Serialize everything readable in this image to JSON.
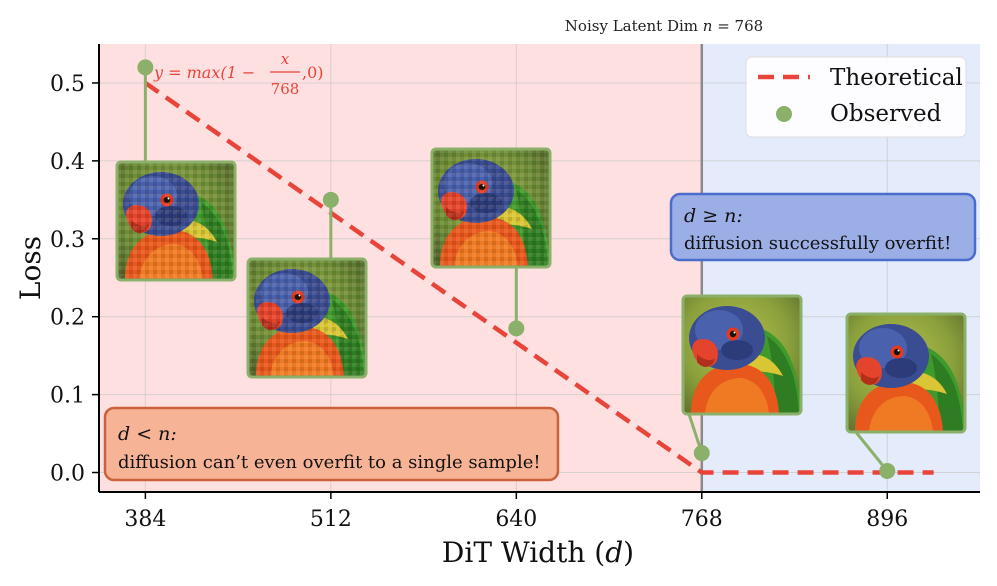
{
  "chart_data": {
    "type": "line",
    "title": "Noisy Latent Dim n = 768",
    "title_prefix": "Noisy Latent Dim ",
    "title_var": "n",
    "title_suffix": " = 768",
    "xlabel": "DiT Width (d)",
    "xlabel_prefix": "DiT Width (",
    "xlabel_var": "d",
    "xlabel_suffix": ")",
    "ylabel": "Loss",
    "xlim": [
      352,
      960
    ],
    "ylim": [
      -0.025,
      0.55
    ],
    "xticks": [
      "384",
      "512",
      "640",
      "768",
      "896"
    ],
    "yticks": [
      "0.0",
      "0.1",
      "0.2",
      "0.3",
      "0.4",
      "0.5"
    ],
    "grid": true,
    "legend_position": "top-right",
    "legend": [
      {
        "label": "Theoretical",
        "style": "dashed-line",
        "color": "#e8443a"
      },
      {
        "label": "Observed",
        "style": "marker",
        "color": "#8ab06a"
      }
    ],
    "regions": [
      {
        "name": "d < n",
        "x_from": 352,
        "x_to": 768,
        "color": "#ffe0e0"
      },
      {
        "name": "d >= n",
        "x_from": 768,
        "x_to": 960,
        "color": "#e4ecfb"
      }
    ],
    "threshold_x": 768,
    "series": [
      {
        "name": "Theoretical",
        "x": [
          384,
          768,
          928
        ],
        "values": [
          0.5,
          0.0,
          0.0
        ],
        "color": "#e8443a"
      },
      {
        "name": "Observed",
        "x": [
          384,
          512,
          640,
          768,
          896
        ],
        "values": [
          0.52,
          0.35,
          0.185,
          0.025,
          0.002
        ],
        "color": "#8ab06a"
      }
    ],
    "formula": {
      "prefix": "y = max(1 − ",
      "numerator": "x",
      "denominator": "768",
      "suffix": ",0)",
      "color": "#e8443a"
    },
    "annotations": [
      {
        "math": "d < n:",
        "text": "diffusion can’t even overfit to a single sample!",
        "fill": "#f6b396",
        "border": "#c9613a"
      },
      {
        "math": "d ≥ n:",
        "text": "diffusion successfully overfit!",
        "fill": "#9caee6",
        "border": "#4a6ccc"
      }
    ],
    "thumbnails": [
      {
        "x": 384,
        "quality": "noisy"
      },
      {
        "x": 512,
        "quality": "noisy"
      },
      {
        "x": 640,
        "quality": "noisy"
      },
      {
        "x": 768,
        "quality": "clean"
      },
      {
        "x": 896,
        "quality": "clean"
      }
    ]
  }
}
